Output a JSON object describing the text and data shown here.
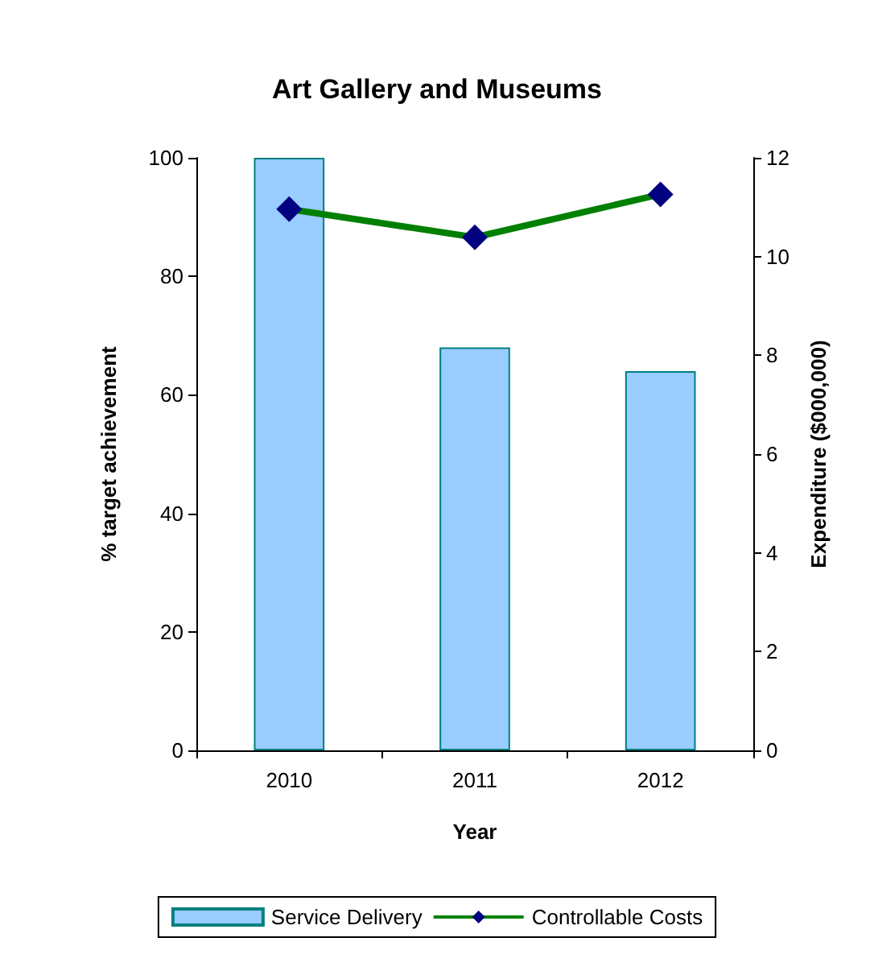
{
  "chart_data": {
    "type": "bar",
    "title": "Art Gallery and Museums",
    "xlabel": "Year",
    "ylabel": "% target achievement",
    "y2label": "Expenditure ($000,000)",
    "categories": [
      "2010",
      "2011",
      "2012"
    ],
    "series": [
      {
        "name": "Service Delivery",
        "color": "#99ccff",
        "values": [
          100,
          68,
          64
        ]
      },
      {
        "name": "Controllable Costs",
        "type": "line",
        "axis": "y2",
        "color": "#008000",
        "marker": "diamond",
        "values": [
          10.96,
          10.39,
          11.26
        ]
      }
    ],
    "ylim": [
      0,
      100
    ],
    "yticks": [
      0,
      20,
      40,
      60,
      80,
      100
    ],
    "y2lim": [
      0,
      12
    ],
    "y2ticks": [
      0,
      2,
      4,
      6,
      8,
      10,
      12
    ],
    "grid": false,
    "legend": "bottom"
  }
}
